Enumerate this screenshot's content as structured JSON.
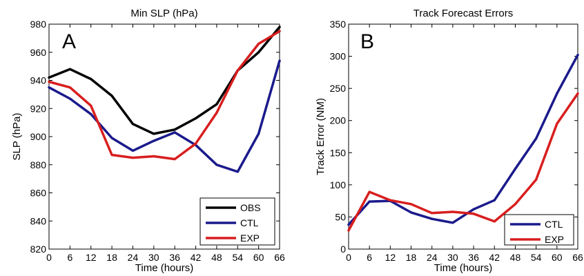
{
  "chart_data": [
    {
      "type": "line",
      "panel_label": "A",
      "title": "Min SLP (hPa)",
      "xlabel": "Time (hours)",
      "ylabel": "SLP (hPa)",
      "xlim": [
        0,
        66
      ],
      "ylim": [
        820,
        980
      ],
      "xticks": [
        0,
        6,
        12,
        18,
        24,
        30,
        36,
        42,
        48,
        54,
        60,
        66
      ],
      "yticks": [
        820,
        840,
        860,
        880,
        900,
        920,
        940,
        960,
        980
      ],
      "legend_position": "bottom-right",
      "x": [
        0,
        6,
        12,
        18,
        24,
        30,
        36,
        42,
        48,
        54,
        60,
        66
      ],
      "series": [
        {
          "name": "OBS",
          "color": "#000000",
          "values": [
            942,
            948,
            941,
            929,
            909,
            902,
            905,
            913,
            923,
            947,
            960,
            978
          ]
        },
        {
          "name": "CTL",
          "color": "#1a1a8c",
          "values": [
            935,
            927,
            916,
            899,
            890,
            897,
            903,
            894,
            880,
            875,
            902,
            954
          ]
        },
        {
          "name": "EXP",
          "color": "#d81e1e",
          "values": [
            939,
            935,
            922,
            887,
            885,
            886,
            884,
            895,
            917,
            947,
            966,
            975
          ]
        }
      ]
    },
    {
      "type": "line",
      "panel_label": "B",
      "title": "Track Forecast Errors",
      "xlabel": "Time (hours)",
      "ylabel": "Track Error (NM)",
      "xlim": [
        0,
        66
      ],
      "ylim": [
        0,
        350
      ],
      "xticks": [
        0,
        6,
        12,
        18,
        24,
        30,
        36,
        42,
        48,
        54,
        60,
        66
      ],
      "yticks": [
        0,
        50,
        100,
        150,
        200,
        250,
        300,
        350
      ],
      "legend_position": "bottom-right",
      "x": [
        0,
        6,
        12,
        18,
        24,
        30,
        36,
        42,
        48,
        54,
        60,
        66
      ],
      "series": [
        {
          "name": "CTL",
          "color": "#1a1a8c",
          "values": [
            38,
            74,
            75,
            57,
            47,
            41,
            62,
            76,
            125,
            172,
            242,
            302
          ]
        },
        {
          "name": "EXP",
          "color": "#d81e1e",
          "values": [
            29,
            89,
            76,
            70,
            56,
            58,
            55,
            43,
            70,
            108,
            195,
            242
          ]
        }
      ]
    }
  ]
}
